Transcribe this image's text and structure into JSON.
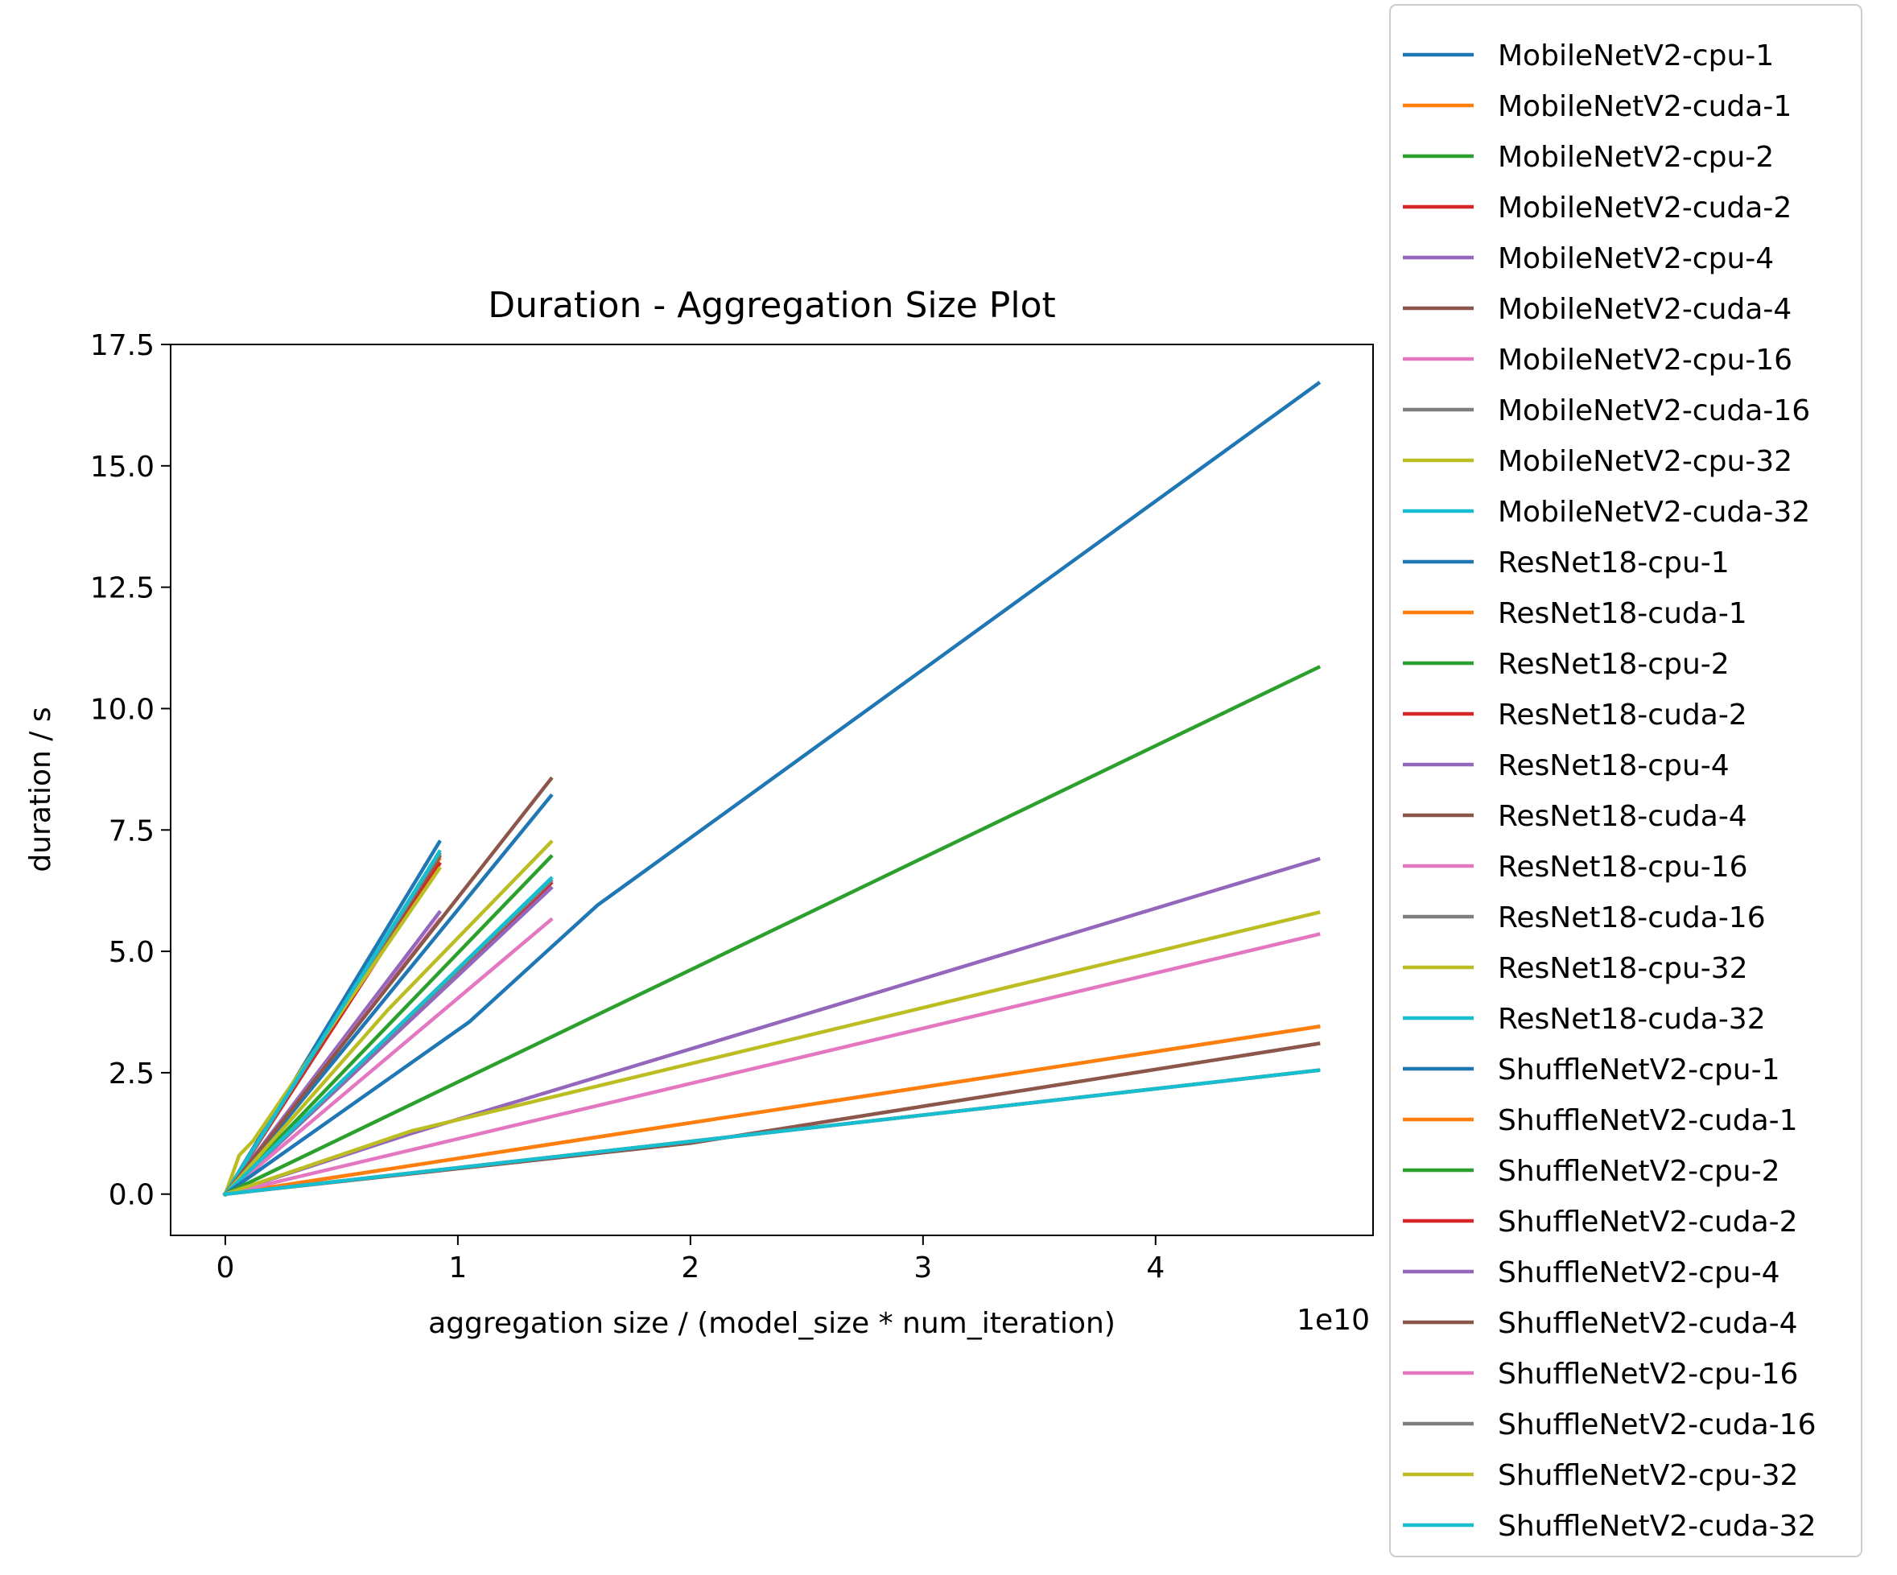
{
  "chart_data": {
    "type": "line",
    "title": "Duration - Aggregation Size Plot",
    "xlabel": "aggregation size / (model_size * num_iteration)",
    "ylabel": "duration / s",
    "x_offset_label": "1e10",
    "x_multiplier": 10000000000,
    "xlim": [
      -2350000000,
      49350000000
    ],
    "ylim": [
      -0.85,
      17.5
    ],
    "x_ticks": [
      0,
      10000000000,
      20000000000,
      30000000000,
      40000000000
    ],
    "x_tick_labels": [
      "0",
      "1",
      "2",
      "3",
      "4"
    ],
    "y_ticks": [
      0.0,
      2.5,
      5.0,
      7.5,
      10.0,
      12.5,
      15.0,
      17.5
    ],
    "y_tick_labels": [
      "0.0",
      "2.5",
      "5.0",
      "7.5",
      "10.0",
      "12.5",
      "15.0",
      "17.5"
    ],
    "grid": false,
    "legend_position": "outside-right",
    "series": [
      {
        "name": "MobileNetV2-cpu-1",
        "color": "#1f77b4",
        "x": [
          0,
          9200000000
        ],
        "y": [
          0,
          7.25
        ]
      },
      {
        "name": "MobileNetV2-cuda-1",
        "color": "#ff7f0e",
        "x": [
          0,
          9200000000
        ],
        "y": [
          0,
          6.9
        ]
      },
      {
        "name": "MobileNetV2-cpu-2",
        "color": "#2ca02c",
        "x": [
          0,
          9200000000
        ],
        "y": [
          0,
          6.95
        ]
      },
      {
        "name": "MobileNetV2-cuda-2",
        "color": "#d62728",
        "x": [
          0,
          9200000000
        ],
        "y": [
          0,
          6.8
        ]
      },
      {
        "name": "MobileNetV2-cpu-4",
        "color": "#9467bd",
        "x": [
          0,
          9200000000
        ],
        "y": [
          0,
          5.8
        ]
      },
      {
        "name": "MobileNetV2-cuda-4",
        "color": "#8c564b",
        "x": [
          0,
          9200000000
        ],
        "y": [
          0,
          6.95
        ]
      },
      {
        "name": "MobileNetV2-cpu-16",
        "color": "#e377c2",
        "x": [
          0,
          9200000000
        ],
        "y": [
          0,
          5.65
        ]
      },
      {
        "name": "MobileNetV2-cuda-16",
        "color": "#7f7f7f",
        "x": [
          0,
          9200000000
        ],
        "y": [
          0,
          7.0
        ]
      },
      {
        "name": "MobileNetV2-cpu-32",
        "color": "#bcbd22",
        "x": [
          0,
          600000000,
          1200000000,
          9200000000
        ],
        "y": [
          0,
          0.8,
          1.1,
          6.7
        ]
      },
      {
        "name": "MobileNetV2-cuda-32",
        "color": "#17becf",
        "x": [
          0,
          9200000000
        ],
        "y": [
          0,
          7.05
        ]
      },
      {
        "name": "ResNet18-cpu-1",
        "color": "#1f77b4",
        "x": [
          0,
          14000000000
        ],
        "y": [
          0,
          8.2
        ]
      },
      {
        "name": "ResNet18-cuda-1",
        "color": "#ff7f0e",
        "x": [
          0,
          47000000000
        ],
        "y": [
          0,
          3.45
        ]
      },
      {
        "name": "ResNet18-cpu-2",
        "color": "#2ca02c",
        "x": [
          0,
          14000000000
        ],
        "y": [
          0,
          6.95
        ]
      },
      {
        "name": "ResNet18-cuda-2",
        "color": "#d62728",
        "x": [
          0,
          14000000000
        ],
        "y": [
          0,
          6.4
        ]
      },
      {
        "name": "ResNet18-cpu-4",
        "color": "#9467bd",
        "x": [
          0,
          14000000000
        ],
        "y": [
          0,
          6.3
        ]
      },
      {
        "name": "ResNet18-cuda-4",
        "color": "#8c564b",
        "x": [
          0,
          14000000000
        ],
        "y": [
          0,
          8.55
        ]
      },
      {
        "name": "ResNet18-cpu-16",
        "color": "#e377c2",
        "x": [
          0,
          14000000000
        ],
        "y": [
          0,
          5.65
        ]
      },
      {
        "name": "ResNet18-cuda-16",
        "color": "#7f7f7f",
        "x": [
          0,
          14000000000
        ],
        "y": [
          0,
          6.45
        ]
      },
      {
        "name": "ResNet18-cpu-32",
        "color": "#bcbd22",
        "x": [
          0,
          7000000000,
          14000000000
        ],
        "y": [
          0,
          3.8,
          7.25
        ]
      },
      {
        "name": "ResNet18-cuda-32",
        "color": "#17becf",
        "x": [
          0,
          14000000000
        ],
        "y": [
          0,
          6.5
        ]
      },
      {
        "name": "ShuffleNetV2-cpu-1",
        "color": "#1f77b4",
        "x": [
          0,
          10500000000,
          16000000000,
          47000000000
        ],
        "y": [
          0,
          3.55,
          5.95,
          16.7
        ]
      },
      {
        "name": "ShuffleNetV2-cuda-1",
        "color": "#ff7f0e",
        "x": [
          0,
          47000000000
        ],
        "y": [
          0,
          3.45
        ]
      },
      {
        "name": "ShuffleNetV2-cpu-2",
        "color": "#2ca02c",
        "x": [
          0,
          47000000000
        ],
        "y": [
          0,
          10.85
        ]
      },
      {
        "name": "ShuffleNetV2-cuda-2",
        "color": "#d62728",
        "x": [
          0,
          47000000000
        ],
        "y": [
          0,
          2.55
        ]
      },
      {
        "name": "ShuffleNetV2-cpu-4",
        "color": "#9467bd",
        "x": [
          0,
          8000000000,
          47000000000
        ],
        "y": [
          0,
          1.25,
          6.9
        ]
      },
      {
        "name": "ShuffleNetV2-cuda-4",
        "color": "#8c564b",
        "x": [
          0,
          20000000000,
          47000000000
        ],
        "y": [
          0,
          1.05,
          3.1
        ]
      },
      {
        "name": "ShuffleNetV2-cpu-16",
        "color": "#e377c2",
        "x": [
          0,
          47000000000
        ],
        "y": [
          0,
          5.35
        ]
      },
      {
        "name": "ShuffleNetV2-cuda-16",
        "color": "#7f7f7f",
        "x": [
          0,
          47000000000
        ],
        "y": [
          0,
          2.55
        ]
      },
      {
        "name": "ShuffleNetV2-cpu-32",
        "color": "#bcbd22",
        "x": [
          0,
          8000000000,
          47000000000
        ],
        "y": [
          0,
          1.3,
          5.8
        ]
      },
      {
        "name": "ShuffleNetV2-cuda-32",
        "color": "#17becf",
        "x": [
          0,
          47000000000
        ],
        "y": [
          0,
          2.55
        ]
      }
    ]
  }
}
